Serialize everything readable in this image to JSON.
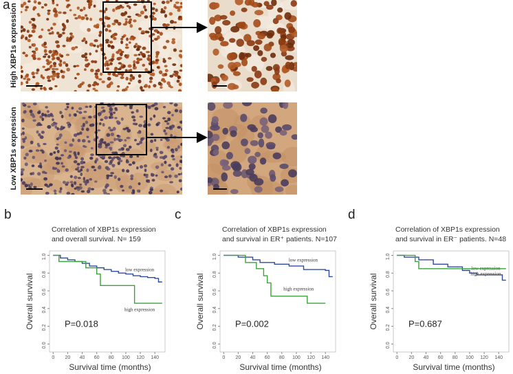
{
  "figure": {
    "panel": "a",
    "row_labels": [
      "High XBP1s expression",
      "Low XBP1s expression"
    ]
  },
  "chart_data": [
    {
      "type": "line",
      "step": true,
      "panel": "b",
      "title": [
        "Correlation of XBP1s expression",
        "and  overall survival.  N= 159"
      ],
      "x_label": "Survival time (months)",
      "y_label": "Overall survival",
      "annotation": "P=0.018",
      "xlim": [
        -5,
        154
      ],
      "ylim": [
        -0.09,
        1.05
      ],
      "xticks": [
        0,
        20,
        40,
        60,
        80,
        100,
        120,
        140
      ],
      "yticks": [
        {
          "value": 0,
          "label": "0.0"
        },
        0.2,
        0.4,
        0.6,
        0.8,
        {
          "value": 1,
          "label": "1.0"
        }
      ],
      "series": [
        {
          "name": "low expression",
          "color": "#2e4a9e",
          "x": [
            0,
            10,
            20,
            30,
            40,
            50,
            60,
            70,
            80,
            90,
            100,
            110,
            120,
            130,
            140,
            145,
            150
          ],
          "values": [
            1,
            0.97,
            0.95,
            0.93,
            0.91,
            0.88,
            0.86,
            0.84,
            0.82,
            0.8,
            0.79,
            0.77,
            0.76,
            0.75,
            0.74,
            0.7,
            0.7
          ]
        },
        {
          "name": "high expression",
          "color": "#3aa13a",
          "x": [
            0,
            8,
            45,
            60,
            65,
            112,
            150
          ],
          "values": [
            1,
            0.93,
            0.86,
            0.79,
            0.66,
            0.46,
            0.46
          ]
        }
      ]
    },
    {
      "type": "line",
      "step": true,
      "panel": "c",
      "title": [
        "Correlation of XBP1s expression",
        "and survival in ER⁺ patients. N=107"
      ],
      "x_label": "Survival time (months)",
      "y_label": "Overall survival",
      "annotation": "P=0.002",
      "xlim": [
        -5,
        154
      ],
      "ylim": [
        -0.09,
        1.05
      ],
      "xticks": [
        0,
        20,
        40,
        60,
        80,
        100,
        120,
        140
      ],
      "yticks": [
        {
          "value": 0,
          "label": "0.0"
        },
        0.2,
        0.4,
        0.6,
        0.8,
        {
          "value": 1,
          "label": "1.0"
        }
      ],
      "series": [
        {
          "name": "low expression",
          "color": "#2e4a9e",
          "x": [
            0,
            20,
            40,
            50,
            70,
            90,
            110,
            140,
            145,
            150
          ],
          "values": [
            1,
            0.98,
            0.95,
            0.92,
            0.9,
            0.88,
            0.84,
            0.83,
            0.76,
            0.76
          ]
        },
        {
          "name": "high expression",
          "color": "#3aa13a",
          "x": [
            0,
            30,
            45,
            55,
            60,
            65,
            115,
            140
          ],
          "values": [
            1,
            0.92,
            0.85,
            0.77,
            0.69,
            0.54,
            0.46,
            0.46
          ]
        }
      ]
    },
    {
      "type": "line",
      "step": true,
      "panel": "d",
      "title": [
        "Correlation of XBP1s expression",
        "and survival in ER⁻ patients. N=48"
      ],
      "x_label": "Survival time (months)",
      "y_label": "Overall survival",
      "annotation": "P=0.687",
      "xlim": [
        -5,
        154
      ],
      "ylim": [
        -0.09,
        1.05
      ],
      "xticks": [
        0,
        20,
        40,
        60,
        80,
        100,
        120,
        140
      ],
      "yticks": [
        {
          "value": 0,
          "label": "0.0"
        },
        0.2,
        0.4,
        0.6,
        0.8,
        {
          "value": 1,
          "label": "1.0"
        }
      ],
      "series": [
        {
          "name": "low expression",
          "color": "#2e4a9e",
          "x": [
            0,
            10,
            30,
            50,
            70,
            90,
            100,
            110,
            140,
            145,
            150
          ],
          "values": [
            1,
            0.98,
            0.95,
            0.9,
            0.87,
            0.83,
            0.8,
            0.78,
            0.78,
            0.72,
            0.72
          ]
        },
        {
          "name": "high expression",
          "color": "#3aa13a",
          "x": [
            0,
            25,
            30,
            150
          ],
          "values": [
            1,
            0.93,
            0.85,
            0.85
          ]
        }
      ]
    }
  ]
}
